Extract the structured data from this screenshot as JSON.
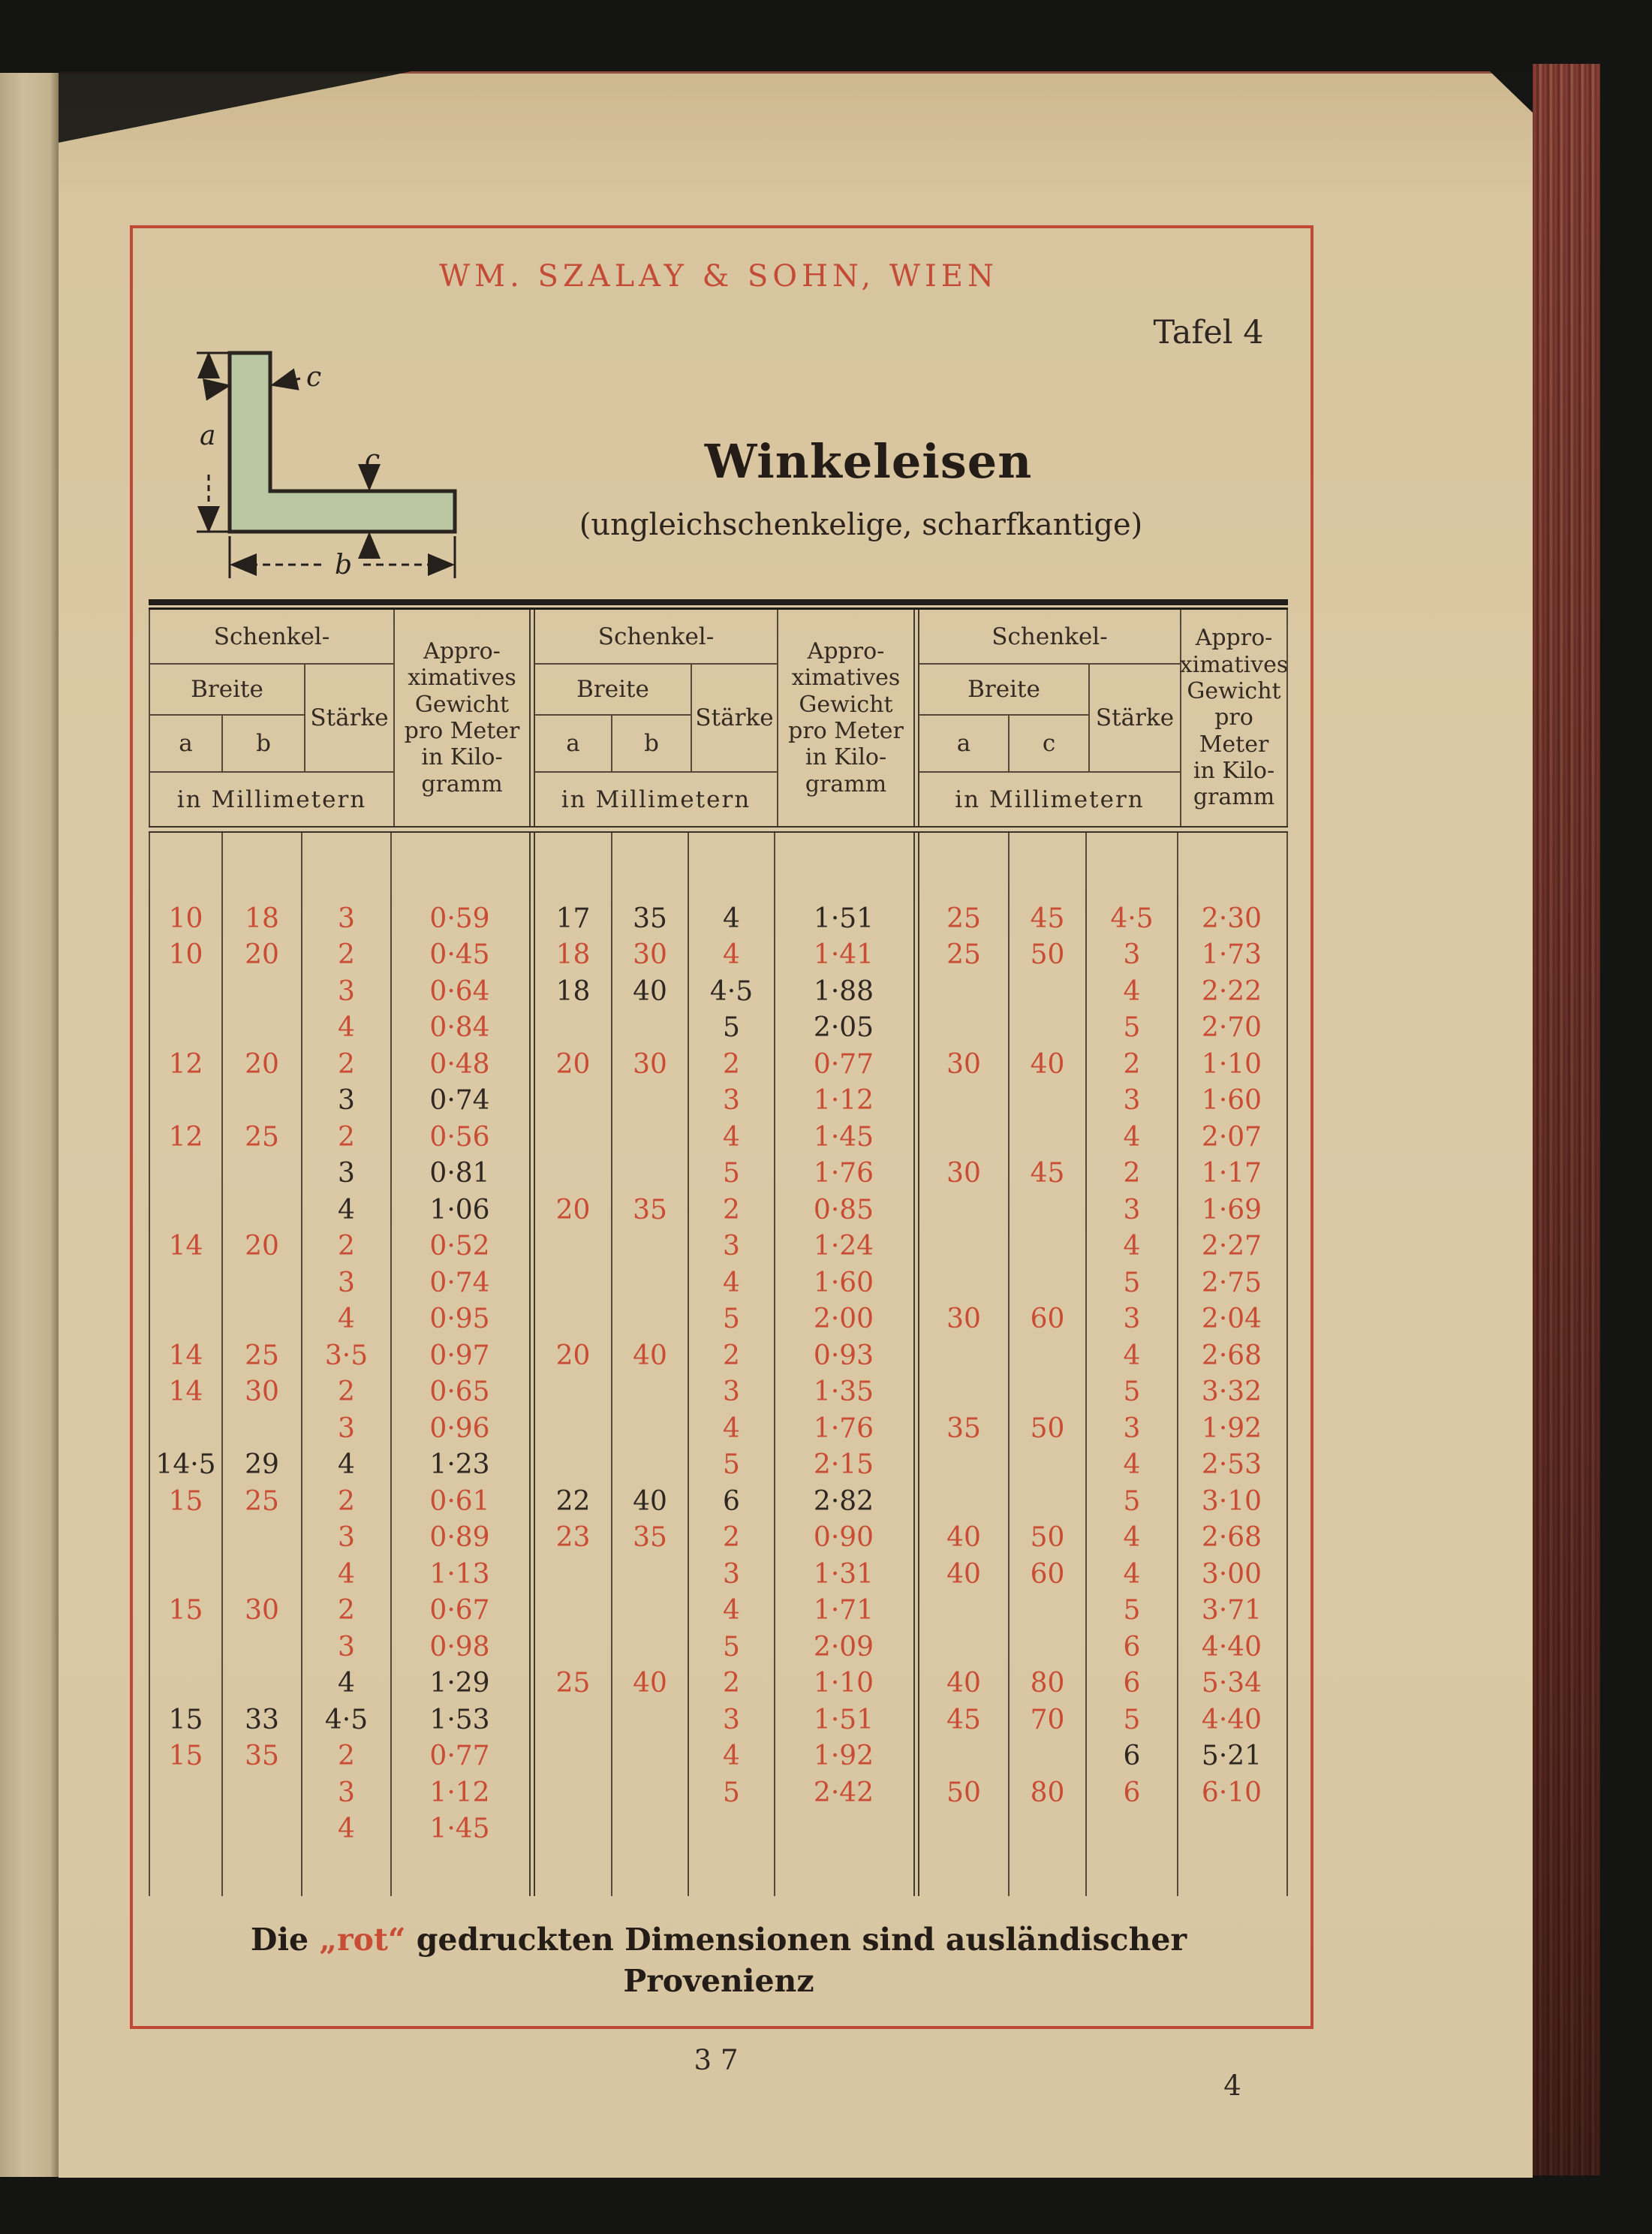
{
  "page": {
    "brand": "WM. SZALAY & SOHN, WIEN",
    "tafel": "Tafel 4",
    "title": "Winkeleisen",
    "subtitle": "(ungleichschenkelige, scharfkantige)",
    "page_number_center": "37",
    "page_number_right": "4"
  },
  "colors": {
    "red_print": "#c94c34",
    "black_print": "#2f2822",
    "paper": "#dbc9a6",
    "frame_red": "#bf4936",
    "diagram_green": "#b9c7a2"
  },
  "diagram": {
    "label_a": "a",
    "label_b": "b",
    "label_c_top": "c",
    "label_c_mid": "c"
  },
  "table": {
    "groups": [
      {
        "head": {
          "schenkel": "Schenkel-",
          "breite": "Breite",
          "staerke": "Stärke",
          "c1": "a",
          "c2": "b",
          "c3": "c",
          "mm": "in Millimetern",
          "gewicht": "Appro-\nximatives\nGewicht\npro Meter\nin Kilo-\ngramm"
        },
        "rows": [
          [
            "10",
            "18",
            "3",
            "0·59",
            "r"
          ],
          [
            "10",
            "20",
            "2",
            "0·45",
            "r"
          ],
          [
            "",
            "",
            "3",
            "0·64",
            "r"
          ],
          [
            "",
            "",
            "4",
            "0·84",
            "r"
          ],
          [
            "12",
            "20",
            "2",
            "0·48",
            "r"
          ],
          [
            "",
            "",
            "3",
            "0·74",
            "k"
          ],
          [
            "12",
            "25",
            "2",
            "0·56",
            "r"
          ],
          [
            "",
            "",
            "3",
            "0·81",
            "k"
          ],
          [
            "",
            "",
            "4",
            "1·06",
            "k"
          ],
          [
            "14",
            "20",
            "2",
            "0·52",
            "r"
          ],
          [
            "",
            "",
            "3",
            "0·74",
            "r"
          ],
          [
            "",
            "",
            "4",
            "0·95",
            "r"
          ],
          [
            "14",
            "25",
            "3·5",
            "0·97",
            "r"
          ],
          [
            "14",
            "30",
            "2",
            "0·65",
            "r"
          ],
          [
            "",
            "",
            "3",
            "0·96",
            "r"
          ],
          [
            "14·5",
            "29",
            "4",
            "1·23",
            "k"
          ],
          [
            "15",
            "25",
            "2",
            "0·61",
            "r"
          ],
          [
            "",
            "",
            "3",
            "0·89",
            "r"
          ],
          [
            "",
            "",
            "4",
            "1·13",
            "r"
          ],
          [
            "15",
            "30",
            "2",
            "0·67",
            "r"
          ],
          [
            "",
            "",
            "3",
            "0·98",
            "r"
          ],
          [
            "",
            "",
            "4",
            "1·29",
            "k"
          ],
          [
            "15",
            "33",
            "4·5",
            "1·53",
            "k"
          ],
          [
            "15",
            "35",
            "2",
            "0·77",
            "r"
          ],
          [
            "",
            "",
            "3",
            "1·12",
            "r"
          ],
          [
            "",
            "",
            "4",
            "1·45",
            "r"
          ]
        ]
      },
      {
        "head": {
          "schenkel": "Schenkel-",
          "breite": "Breite",
          "staerke": "Stärke",
          "c1": "a",
          "c2": "b",
          "c3": "c",
          "mm": "in Millimetern",
          "gewicht": "Appro-\nximatives\nGewicht\npro Meter\nin Kilo-\ngramm"
        },
        "rows": [
          [
            "17",
            "35",
            "4",
            "1·51",
            "k"
          ],
          [
            "18",
            "30",
            "4",
            "1·41",
            "r"
          ],
          [
            "18",
            "40",
            "4·5",
            "1·88",
            "k"
          ],
          [
            "",
            "",
            "5",
            "2·05",
            "k"
          ],
          [
            "20",
            "30",
            "2",
            "0·77",
            "r"
          ],
          [
            "",
            "",
            "3",
            "1·12",
            "r"
          ],
          [
            "",
            "",
            "4",
            "1·45",
            "r"
          ],
          [
            "",
            "",
            "5",
            "1·76",
            "r"
          ],
          [
            "20",
            "35",
            "2",
            "0·85",
            "r"
          ],
          [
            "",
            "",
            "3",
            "1·24",
            "r"
          ],
          [
            "",
            "",
            "4",
            "1·60",
            "r"
          ],
          [
            "",
            "",
            "5",
            "2·00",
            "r"
          ],
          [
            "20",
            "40",
            "2",
            "0·93",
            "r"
          ],
          [
            "",
            "",
            "3",
            "1·35",
            "r"
          ],
          [
            "",
            "",
            "4",
            "1·76",
            "r"
          ],
          [
            "",
            "",
            "5",
            "2·15",
            "r"
          ],
          [
            "22",
            "40",
            "6",
            "2·82",
            "k"
          ],
          [
            "23",
            "35",
            "2",
            "0·90",
            "r"
          ],
          [
            "",
            "",
            "3",
            "1·31",
            "r"
          ],
          [
            "",
            "",
            "4",
            "1·71",
            "r"
          ],
          [
            "",
            "",
            "5",
            "2·09",
            "r"
          ],
          [
            "25",
            "40",
            "2",
            "1·10",
            "r"
          ],
          [
            "",
            "",
            "3",
            "1·51",
            "r"
          ],
          [
            "",
            "",
            "4",
            "1·92",
            "r"
          ],
          [
            "",
            "",
            "5",
            "2·42",
            "r"
          ],
          [
            "",
            "",
            "",
            "",
            ""
          ]
        ]
      },
      {
        "head": {
          "schenkel": "Schenkel-",
          "breite": "Breite",
          "staerke": "Stärke",
          "c1": "a",
          "c2": "c",
          "c3": "c",
          "mm": "in Millimetern",
          "gewicht": "Appro-\nximatives\nGewicht\npro Meter\nin Kilo-\ngramm"
        },
        "rows": [
          [
            "25",
            "45",
            "4·5",
            "2·30",
            "r"
          ],
          [
            "25",
            "50",
            "3",
            "1·73",
            "r"
          ],
          [
            "",
            "",
            "4",
            "2·22",
            "r"
          ],
          [
            "",
            "",
            "5",
            "2·70",
            "r"
          ],
          [
            "30",
            "40",
            "2",
            "1·10",
            "r"
          ],
          [
            "",
            "",
            "3",
            "1·60",
            "r"
          ],
          [
            "",
            "",
            "4",
            "2·07",
            "r"
          ],
          [
            "30",
            "45",
            "2",
            "1·17",
            "r"
          ],
          [
            "",
            "",
            "3",
            "1·69",
            "r"
          ],
          [
            "",
            "",
            "4",
            "2·27",
            "r"
          ],
          [
            "",
            "",
            "5",
            "2·75",
            "r"
          ],
          [
            "30",
            "60",
            "3",
            "2·04",
            "r"
          ],
          [
            "",
            "",
            "4",
            "2·68",
            "r"
          ],
          [
            "",
            "",
            "5",
            "3·32",
            "r"
          ],
          [
            "35",
            "50",
            "3",
            "1·92",
            "r"
          ],
          [
            "",
            "",
            "4",
            "2·53",
            "r"
          ],
          [
            "",
            "",
            "5",
            "3·10",
            "r"
          ],
          [
            "40",
            "50",
            "4",
            "2·68",
            "r"
          ],
          [
            "40",
            "60",
            "4",
            "3·00",
            "r"
          ],
          [
            "",
            "",
            "5",
            "3·71",
            "r"
          ],
          [
            "",
            "",
            "6",
            "4·40",
            "r"
          ],
          [
            "40",
            "80",
            "6",
            "5·34",
            "r"
          ],
          [
            "45",
            "70",
            "5",
            "4·40",
            "r"
          ],
          [
            "",
            "",
            "6",
            "5·21",
            "k"
          ],
          [
            "50",
            "80",
            "6",
            "6·10",
            "r"
          ],
          [
            "",
            "",
            "",
            "",
            ""
          ]
        ]
      }
    ]
  },
  "footer": {
    "prefix": "Die ",
    "rot": "„rot“",
    "suffix": " gedruckten Dimensionen sind ausländischer",
    "line2": "Provenienz"
  }
}
